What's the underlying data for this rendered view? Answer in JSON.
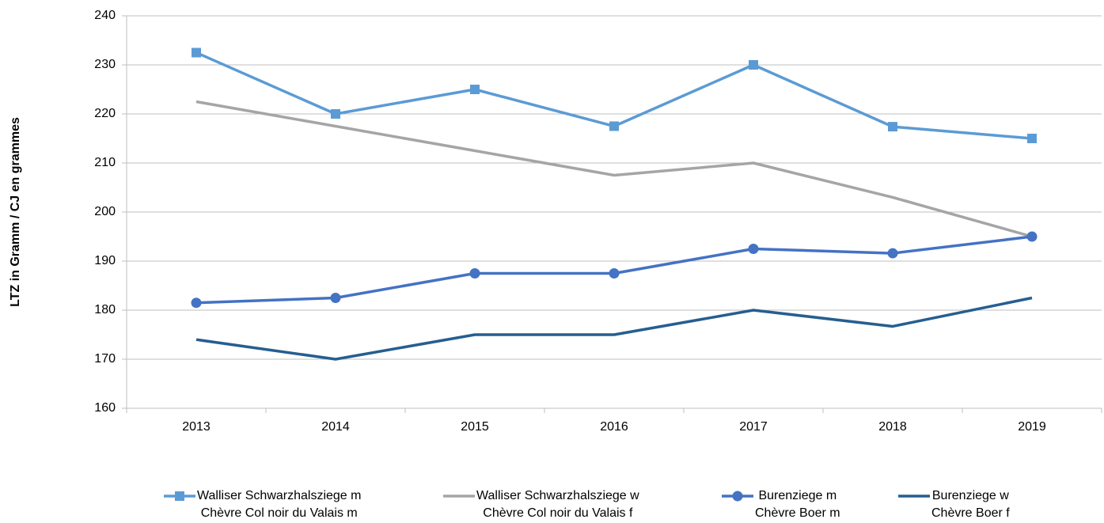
{
  "chart_data": {
    "type": "line",
    "y_label": "LTZ in Gramm / CJ en grammes",
    "categories": [
      "2013",
      "2014",
      "2015",
      "2016",
      "2017",
      "2018",
      "2019"
    ],
    "ylim": [
      160,
      240
    ],
    "yticks": [
      160,
      170,
      180,
      190,
      200,
      210,
      220,
      230,
      240
    ],
    "grid": true,
    "legend": "bottom",
    "series": [
      {
        "name": "Walliser Schwarzhalsziege m\nChèvre Col noir du Valais m",
        "color": "#5b9bd5",
        "marker": "square",
        "values": [
          232.5,
          220,
          225,
          217.5,
          230,
          217.4,
          215
        ]
      },
      {
        "name": "Walliser Schwarzhalsziege w\nChèvre Col noir du Valais f",
        "color": "#a5a5a5",
        "marker": "none",
        "values": [
          222.5,
          217.5,
          212.5,
          207.5,
          210,
          203,
          195
        ]
      },
      {
        "name": "Burenziege m\nChèvre Boer m",
        "color": "#4472c4",
        "marker": "circle",
        "values": [
          181.5,
          182.5,
          187.5,
          187.5,
          192.5,
          191.6,
          195
        ]
      },
      {
        "name": "Burenziege w\nChèvre Boer f",
        "color": "#255e91",
        "marker": "none",
        "values": [
          174,
          170,
          175,
          175,
          180,
          176.7,
          182.5
        ]
      }
    ]
  }
}
